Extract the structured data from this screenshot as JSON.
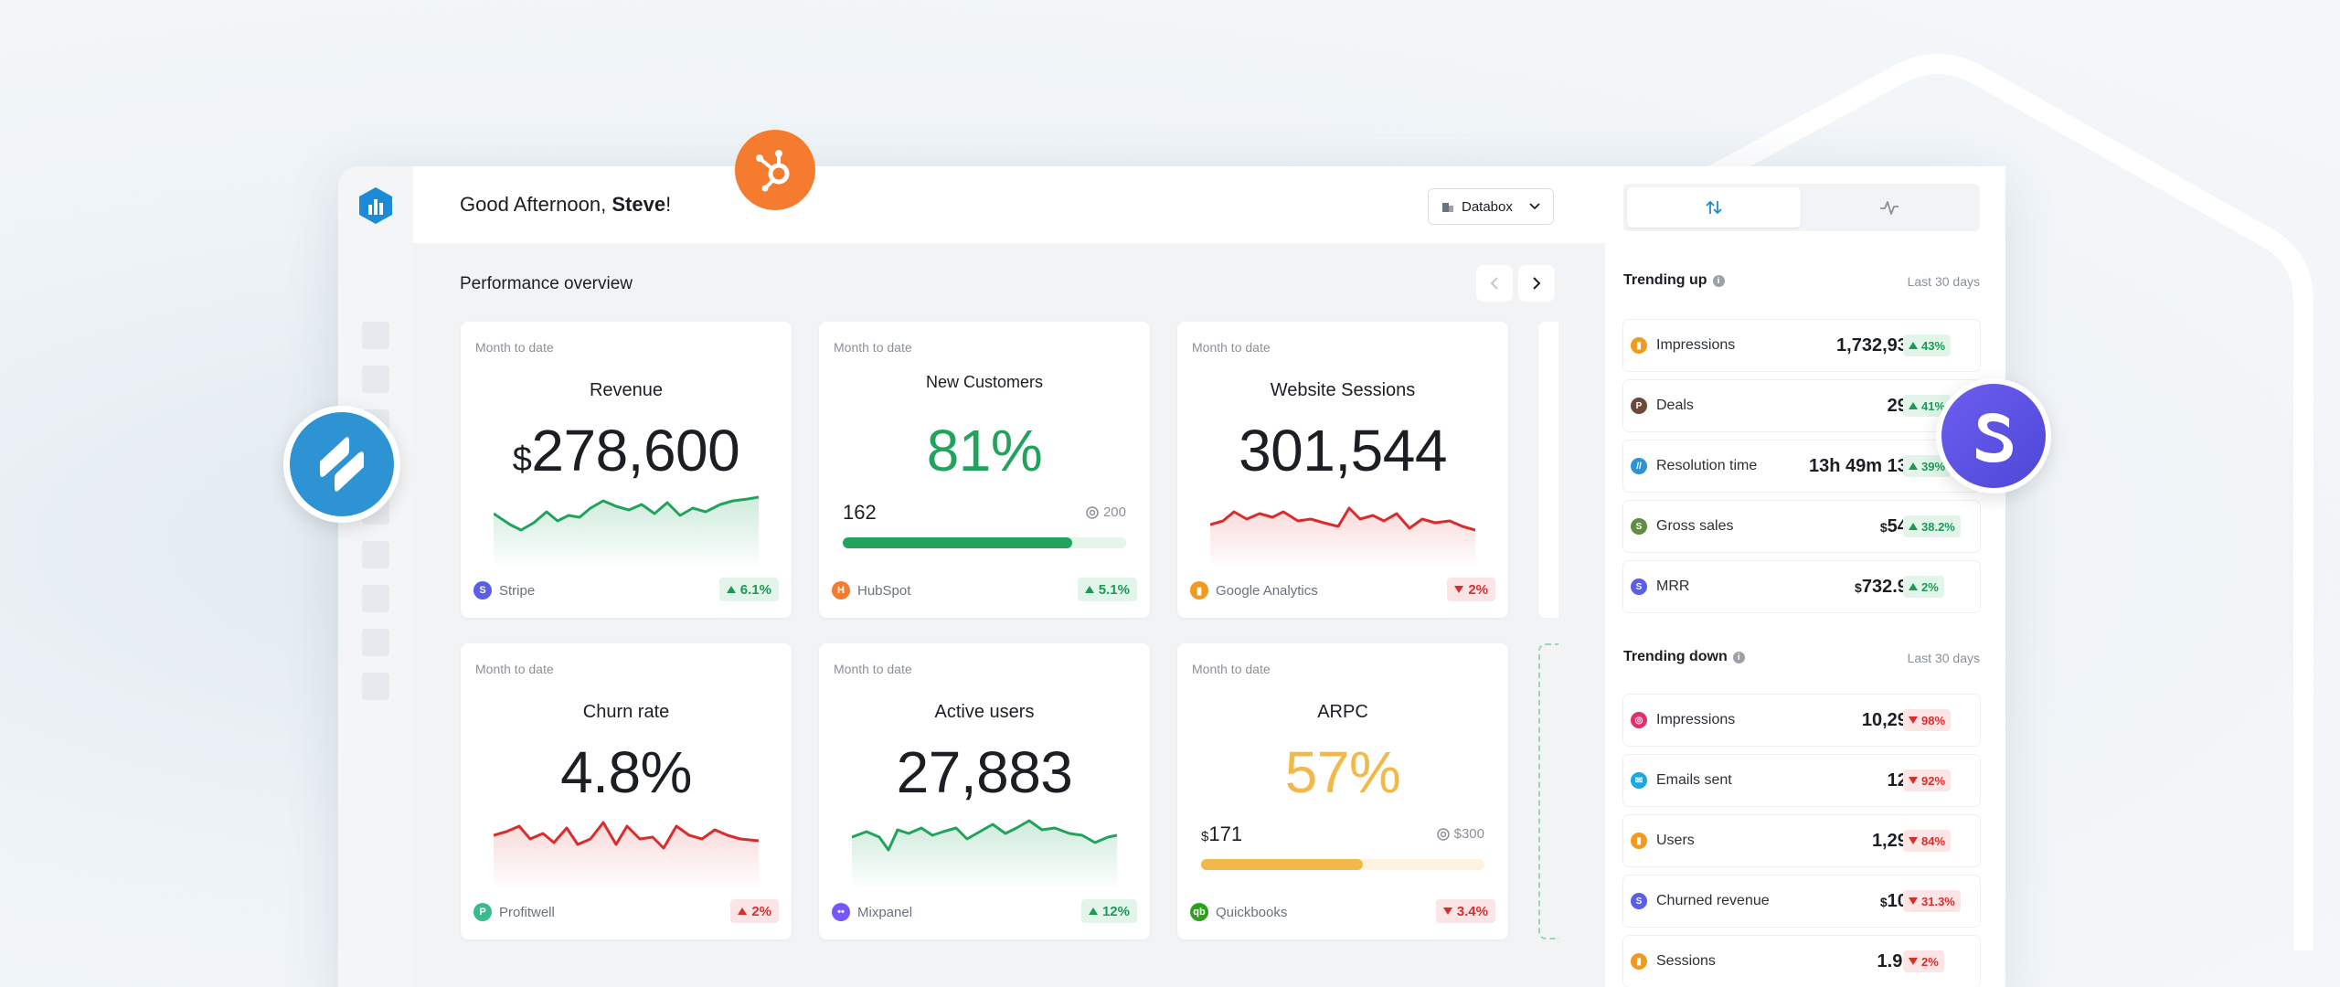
{
  "header": {
    "greeting_prefix": "Good Afternoon, ",
    "user_name": "Steve",
    "greeting_suffix": "!",
    "workspace": "Databox"
  },
  "overview": {
    "title": "Performance overview"
  },
  "cards": [
    {
      "period": "Month to date",
      "title": "Revenue",
      "currency": "$",
      "value": "278,600",
      "source": "Stripe",
      "change": "6.1%",
      "direction": "up"
    },
    {
      "period": "Month to date",
      "title": "New Customers",
      "value": "81%",
      "goal_current": "162",
      "goal_target": "200",
      "goal_progress": 0.81,
      "source": "HubSpot",
      "change": "5.1%",
      "direction": "up"
    },
    {
      "period": "Month to date",
      "title": "Website Sessions",
      "value": "301,544",
      "source": "Google Analytics",
      "change": "2%",
      "direction": "down"
    },
    {
      "period": "Month to date",
      "title": "Churn rate",
      "value": "4.8%",
      "source": "Profitwell",
      "change": "2%",
      "direction": "up"
    },
    {
      "period": "Month to date",
      "title": "Active users",
      "value": "27,883",
      "source": "Mixpanel",
      "change": "12%",
      "direction": "up"
    },
    {
      "period": "Month to date",
      "title": "ARPC",
      "value": "57%",
      "goal_currency": "$",
      "goal_current": "171",
      "goal_target": "$300",
      "goal_progress": 0.57,
      "source": "Quickbooks",
      "change": "3.4%",
      "direction": "down"
    }
  ],
  "trending_up": {
    "label": "Trending up",
    "range": "Last 30 days",
    "rows": [
      {
        "name": "Impressions",
        "value": "1,732,939",
        "change": "43%"
      },
      {
        "name": "Deals",
        "value": "292",
        "change": "41%"
      },
      {
        "name": "Resolution time",
        "value": "13h 49m 13s",
        "change": "39%"
      },
      {
        "name": "Gross sales",
        "currency": "$",
        "value": "544",
        "change": "38.2%"
      },
      {
        "name": "MRR",
        "currency": "$",
        "value": "732.9k",
        "change": "2%"
      }
    ]
  },
  "trending_down": {
    "label": "Trending down",
    "range": "Last 30 days",
    "rows": [
      {
        "name": "Impressions",
        "value": "10,292",
        "change": "98%"
      },
      {
        "name": "Emails sent",
        "value": "129",
        "change": "92%"
      },
      {
        "name": "Users",
        "value": "1,292",
        "change": "84%"
      },
      {
        "name": "Churned revenue",
        "currency": "$",
        "value": "100",
        "change": "31.3%"
      },
      {
        "name": "Sessions",
        "value": "1.9M",
        "change": "2%"
      }
    ]
  },
  "colors": {
    "green": "#22a35d",
    "red": "#d92c2c",
    "amber": "#f2b94a",
    "databox_blue": "#1b8bd6",
    "hubspot_orange": "#f57c2f",
    "stripe_purple": "#5a5ee8",
    "helpscout_blue": "#2d93d3"
  }
}
